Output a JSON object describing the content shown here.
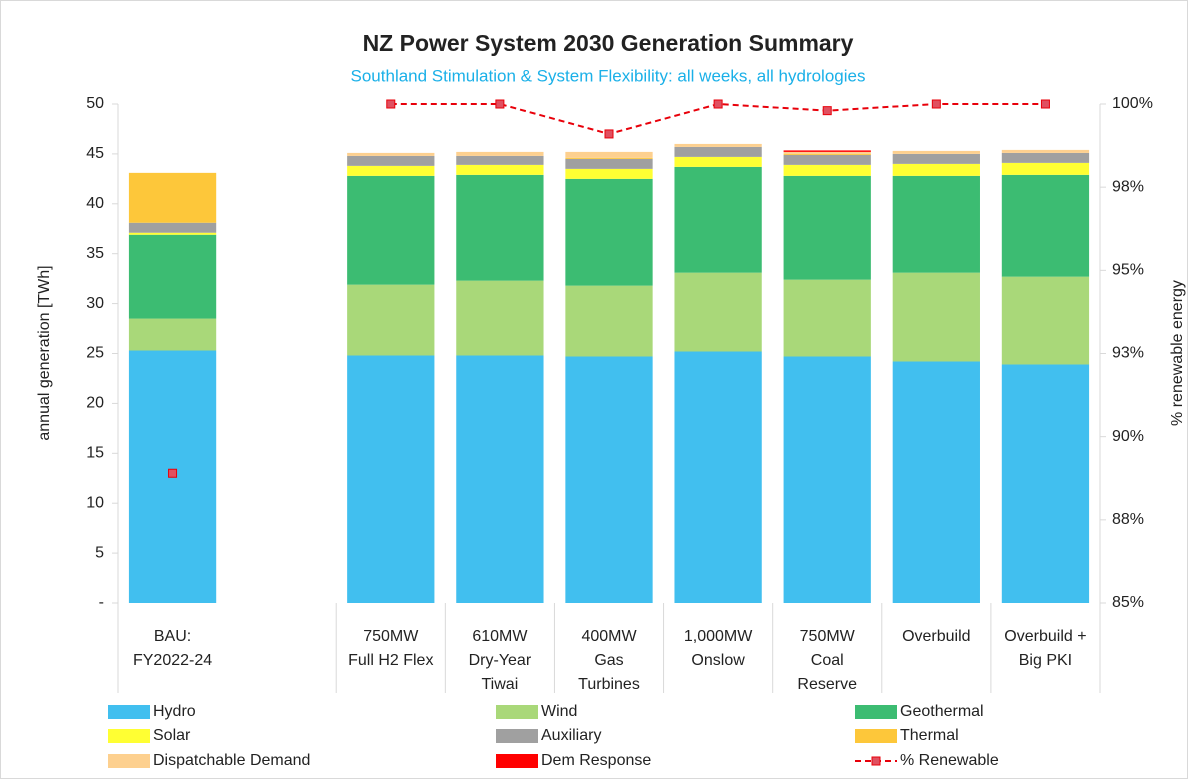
{
  "chart_data": {
    "type": "bar",
    "stacked": true,
    "title": "NZ Power System 2030 Generation Summary",
    "subtitle": "Southland Stimulation & System Flexibility:  all weeks, all hydrologies",
    "ylabel": "annual generation [TWh]",
    "y2label": "% renewable energy",
    "categories": [
      "BAU:\nFY2022-24",
      null,
      "750MW\nFull H2 Flex",
      "610MW\nDry-Year\nTiwai",
      "400MW\nGas\nTurbines",
      "1,000MW\nOnslow",
      "750MW\nCoal\nReserve",
      "Overbuild",
      "Overbuild +\nBig PKI"
    ],
    "ylim": [
      0,
      50
    ],
    "yticks": [
      {
        "value": 0,
        "label": "-"
      },
      5,
      10,
      15,
      20,
      25,
      30,
      35,
      40,
      45,
      50
    ],
    "y2lim": [
      85,
      100
    ],
    "y2ticks": [
      {
        "value": 85,
        "label": "85%"
      },
      {
        "value": 87.5,
        "label": "88%"
      },
      {
        "value": 90,
        "label": "90%"
      },
      {
        "value": 92.5,
        "label": "93%"
      },
      {
        "value": 95,
        "label": "95%"
      },
      {
        "value": 97.5,
        "label": "98%"
      },
      {
        "value": 100,
        "label": "100%"
      }
    ],
    "series": [
      {
        "name": "Hydro",
        "color": "#41bfef",
        "values": [
          25.3,
          null,
          24.8,
          24.8,
          24.7,
          25.2,
          24.7,
          24.2,
          23.9
        ]
      },
      {
        "name": "Wind",
        "color": "#a9d879",
        "values": [
          3.2,
          null,
          7.1,
          7.5,
          7.1,
          7.9,
          7.7,
          8.9,
          8.8
        ]
      },
      {
        "name": "Geothermal",
        "color": "#3cbc72",
        "values": [
          8.4,
          null,
          10.9,
          10.6,
          10.7,
          10.6,
          10.4,
          9.7,
          10.2
        ]
      },
      {
        "name": "Solar",
        "color": "#ffff33",
        "values": [
          0.2,
          null,
          1.0,
          1.0,
          1.0,
          1.0,
          1.1,
          1.2,
          1.2
        ]
      },
      {
        "name": "Auxiliary",
        "color": "#a0a0a0",
        "values": [
          1.0,
          null,
          1.0,
          0.9,
          1.0,
          1.0,
          1.0,
          1.0,
          1.0
        ]
      },
      {
        "name": "Thermal",
        "color": "#fdc73a",
        "values": [
          5.0,
          null,
          0,
          0,
          0.1,
          0,
          0.1,
          0,
          0
        ]
      },
      {
        "name": "Dispatchable Demand",
        "color": "#fdd08f",
        "values": [
          0,
          null,
          0.3,
          0.4,
          0.6,
          0.3,
          0.2,
          0.3,
          0.3
        ]
      },
      {
        "name": "Dem Response",
        "color": "#ff0000",
        "values": [
          0,
          null,
          0,
          0,
          0,
          0,
          0.15,
          0,
          0
        ]
      },
      {
        "name": "% Renewable",
        "type": "line",
        "axis": "y2",
        "color": "#e8000a",
        "marker_color": "#e05060",
        "values": [
          88.9,
          null,
          100,
          100,
          99.1,
          100,
          99.8,
          100,
          100
        ]
      }
    ]
  }
}
